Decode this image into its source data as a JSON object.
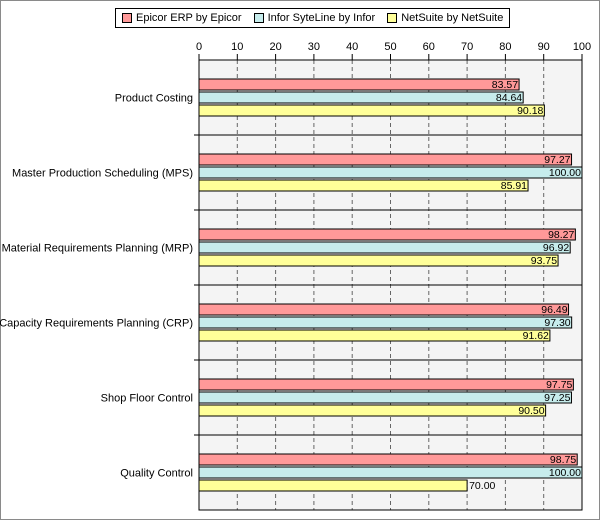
{
  "chart_data": {
    "type": "bar",
    "orientation": "horizontal",
    "categories": [
      "Product Costing",
      "Master Production Scheduling (MPS)",
      "Material Requirements Planning (MRP)",
      "Capacity Requirements Planning (CRP)",
      "Shop Floor Control",
      "Quality Control"
    ],
    "series": [
      {
        "name": "Epicor ERP by Epicor",
        "color": "#ff9999",
        "values": [
          83.57,
          97.27,
          98.27,
          96.49,
          97.75,
          98.75
        ],
        "labels": [
          "83.57",
          "97.27",
          "98.27",
          "96.49",
          "97.75",
          "98.75"
        ]
      },
      {
        "name": "Infor SyteLine by Infor",
        "color": "#c6ecec",
        "values": [
          84.64,
          100.0,
          96.92,
          97.3,
          97.25,
          100.0
        ],
        "labels": [
          "84.64",
          "100.00",
          "96.92",
          "97.30",
          "97.25",
          "100.00"
        ]
      },
      {
        "name": "NetSuite by NetSuite",
        "color": "#ffff99",
        "values": [
          90.18,
          85.91,
          93.75,
          91.62,
          90.5,
          70.0
        ],
        "labels": [
          "90.18",
          "85.91",
          "93.75",
          "91.62",
          "90.50",
          "70.00"
        ]
      }
    ],
    "xlim": [
      0,
      100
    ],
    "xticks": [
      "0",
      "10",
      "20",
      "30",
      "40",
      "50",
      "60",
      "70",
      "80",
      "90",
      "100"
    ],
    "grid": true,
    "legend_position": "top"
  }
}
